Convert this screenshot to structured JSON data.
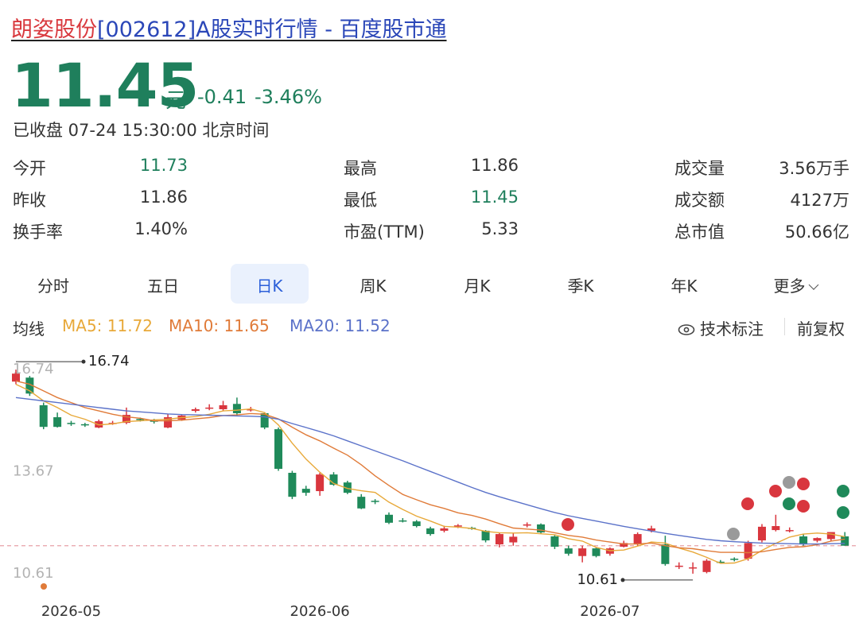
{
  "header": {
    "name": "朗姿股份",
    "title": "[002612]A股实时行情 - 百度股市通"
  },
  "quote": {
    "price": "11.45",
    "unit": "元",
    "change": "-0.41",
    "change_pct": "-3.46%",
    "status": "已收盘 07-24 15:30:00 北京时间",
    "color": "#1f7f5c"
  },
  "stats": [
    {
      "label": "今开",
      "value": "11.73",
      "color": "#1f7f5c"
    },
    {
      "label": "最高",
      "value": "11.86",
      "color": "#333333"
    },
    {
      "label": "成交量",
      "value": "3.56万手",
      "color": "#333333"
    },
    {
      "label": "昨收",
      "value": "11.86",
      "color": "#333333"
    },
    {
      "label": "最低",
      "value": "11.45",
      "color": "#1f7f5c"
    },
    {
      "label": "成交额",
      "value": "4127万",
      "color": "#333333"
    },
    {
      "label": "换手率",
      "value": "1.40%",
      "color": "#333333"
    },
    {
      "label": "市盈(TTM)",
      "value": "5.33",
      "color": "#333333"
    },
    {
      "label": "总市值",
      "value": "50.66亿",
      "color": "#333333"
    }
  ],
  "tabs": [
    "分时",
    "五日",
    "日K",
    "周K",
    "月K",
    "季K",
    "年K",
    "更多"
  ],
  "active_tab": 2,
  "indicator_label": "均线",
  "tools": [
    "技术标注",
    "前复权"
  ],
  "chart_data": {
    "type": "candlestick",
    "up_color": "#d9363e",
    "down_color": "#1f8a5a",
    "categories": [
      null,
      null,
      null,
      null,
      "2026-05",
      null,
      null,
      null,
      null,
      null,
      null,
      null,
      null,
      null,
      null,
      null,
      null,
      null,
      null,
      null,
      null,
      null,
      "2026-06",
      null,
      null,
      null,
      null,
      null,
      null,
      null,
      null,
      null,
      null,
      null,
      null,
      null,
      null,
      null,
      null,
      null,
      null,
      null,
      null,
      "2026-07",
      null,
      null,
      null,
      null,
      null,
      null,
      null,
      null,
      null,
      null,
      null,
      null,
      null,
      null,
      null,
      null,
      null
    ],
    "open": [
      16.38,
      16.5,
      15.67,
      15.31,
      15.14,
      15.1,
      15.0,
      15.12,
      15.14,
      15.26,
      15.21,
      15.0,
      15.24,
      15.5,
      15.58,
      15.55,
      15.71,
      15.55,
      15.43,
      14.95,
      13.64,
      13.16,
      13.09,
      13.59,
      13.35,
      12.92,
      12.8,
      12.38,
      12.21,
      12.18,
      11.97,
      11.9,
      12.04,
      11.99,
      11.9,
      11.49,
      11.55,
      12.06,
      12.09,
      11.73,
      11.37,
      11.14,
      11.37,
      11.21,
      11.42,
      11.49,
      11.9,
      11.49,
      10.85,
      10.78,
      10.66,
      10.97,
      11.06,
      11.06,
      11.61,
      11.92,
      11.9,
      11.73,
      11.6,
      11.65,
      11.73
    ],
    "high": [
      16.74,
      16.55,
      15.75,
      15.45,
      15.2,
      15.14,
      15.24,
      15.2,
      15.6,
      15.3,
      15.26,
      15.4,
      15.38,
      15.6,
      15.7,
      15.8,
      15.9,
      15.62,
      15.46,
      15.0,
      13.7,
      13.25,
      13.64,
      13.66,
      13.4,
      13.0,
      12.85,
      12.45,
      12.28,
      12.22,
      12.02,
      12.05,
      12.1,
      12.02,
      11.92,
      11.85,
      11.82,
      12.15,
      12.12,
      11.78,
      11.45,
      11.45,
      11.4,
      11.4,
      11.6,
      11.85,
      12.05,
      11.75,
      10.95,
      10.95,
      11.05,
      11.02,
      11.1,
      11.6,
      12.1,
      12.38,
      12.0,
      11.8,
      11.7,
      11.8,
      11.86
    ],
    "low": [
      16.3,
      15.95,
      14.95,
      15.0,
      15.05,
      15.02,
      14.98,
      15.08,
      15.1,
      15.18,
      15.12,
      14.98,
      15.2,
      15.45,
      15.52,
      15.5,
      15.35,
      15.48,
      14.95,
      13.7,
      12.85,
      12.95,
      12.95,
      13.25,
      13.0,
      12.55,
      12.7,
      12.1,
      12.15,
      12.0,
      11.75,
      11.85,
      11.98,
      11.93,
      11.55,
      11.4,
      11.45,
      12.0,
      11.8,
      11.35,
      11.15,
      10.95,
      11.1,
      11.15,
      11.4,
      11.45,
      11.85,
      10.85,
      10.75,
      10.61,
      10.62,
      10.92,
      10.98,
      11.0,
      11.55,
      11.88,
      11.85,
      11.45,
      11.55,
      11.6,
      11.45
    ],
    "close": [
      16.62,
      16.02,
      15.02,
      15.02,
      15.12,
      15.07,
      15.19,
      15.14,
      15.38,
      15.24,
      15.19,
      15.31,
      15.36,
      15.55,
      15.6,
      15.67,
      15.43,
      15.55,
      15.0,
      13.76,
      12.92,
      13.04,
      13.59,
      13.28,
      13.04,
      12.57,
      12.78,
      12.14,
      12.19,
      12.04,
      11.8,
      11.97,
      12.06,
      11.97,
      11.61,
      11.8,
      11.72,
      12.09,
      11.85,
      11.42,
      11.21,
      11.37,
      11.14,
      11.37,
      11.53,
      11.8,
      11.97,
      10.9,
      10.85,
      10.8,
      11.0,
      10.95,
      11.04,
      11.53,
      12.02,
      12.04,
      11.92,
      11.49,
      11.68,
      11.86,
      11.45
    ],
    "series": [
      {
        "name": "MA5: 11.72",
        "color": "#e8a93a",
        "values": [
          16.3,
          16.1,
          15.8,
          15.6,
          15.37,
          15.25,
          15.08,
          15.11,
          15.18,
          15.2,
          15.23,
          15.25,
          15.3,
          15.33,
          15.4,
          15.5,
          15.52,
          15.56,
          15.45,
          15.08,
          14.53,
          14.05,
          13.66,
          13.32,
          13.17,
          13.1,
          13.05,
          12.76,
          12.54,
          12.34,
          12.19,
          12.03,
          12.01,
          11.97,
          11.88,
          11.84,
          11.83,
          11.84,
          11.81,
          11.78,
          11.66,
          11.59,
          11.4,
          11.3,
          11.32,
          11.44,
          11.56,
          11.53,
          11.38,
          11.26,
          11.1,
          10.92,
          10.93,
          11.06,
          11.31,
          11.52,
          11.71,
          11.8,
          11.83,
          11.8,
          11.72
        ]
      },
      {
        "name": "MA10: 11.65",
        "color": "#e07b39",
        "values": [
          16.4,
          16.3,
          16.1,
          15.9,
          15.75,
          15.6,
          15.5,
          15.4,
          15.32,
          15.28,
          15.2,
          15.2,
          15.22,
          15.26,
          15.3,
          15.36,
          15.38,
          15.42,
          15.4,
          15.26,
          15.01,
          14.78,
          14.6,
          14.38,
          14.17,
          13.88,
          13.55,
          13.26,
          12.99,
          12.83,
          12.68,
          12.57,
          12.44,
          12.36,
          12.25,
          12.11,
          11.98,
          11.95,
          11.92,
          11.84,
          11.76,
          11.71,
          11.62,
          11.56,
          11.5,
          11.5,
          11.53,
          11.45,
          11.39,
          11.36,
          11.3,
          11.25,
          11.25,
          11.24,
          11.27,
          11.34,
          11.4,
          11.42,
          11.48,
          11.59,
          11.65
        ]
      },
      {
        "name": "MA20: 11.52",
        "color": "#5b72c9",
        "values": [
          15.9,
          15.85,
          15.8,
          15.75,
          15.7,
          15.65,
          15.6,
          15.55,
          15.5,
          15.47,
          15.44,
          15.41,
          15.39,
          15.38,
          15.37,
          15.36,
          15.35,
          15.34,
          15.32,
          15.25,
          15.12,
          15.0,
          14.88,
          14.75,
          14.6,
          14.45,
          14.3,
          14.15,
          14.0,
          13.84,
          13.68,
          13.52,
          13.36,
          13.2,
          13.05,
          12.92,
          12.8,
          12.68,
          12.56,
          12.45,
          12.35,
          12.27,
          12.19,
          12.11,
          12.03,
          11.96,
          11.89,
          11.82,
          11.76,
          11.7,
          11.64,
          11.6,
          11.57,
          11.55,
          11.53,
          11.52,
          11.51,
          11.5,
          11.5,
          11.51,
          11.52
        ]
      }
    ],
    "ylim": [
      9.94,
      17.34
    ],
    "yticks": [
      16.74,
      13.67,
      10.61
    ],
    "grid": false,
    "last_price_line": true
  }
}
